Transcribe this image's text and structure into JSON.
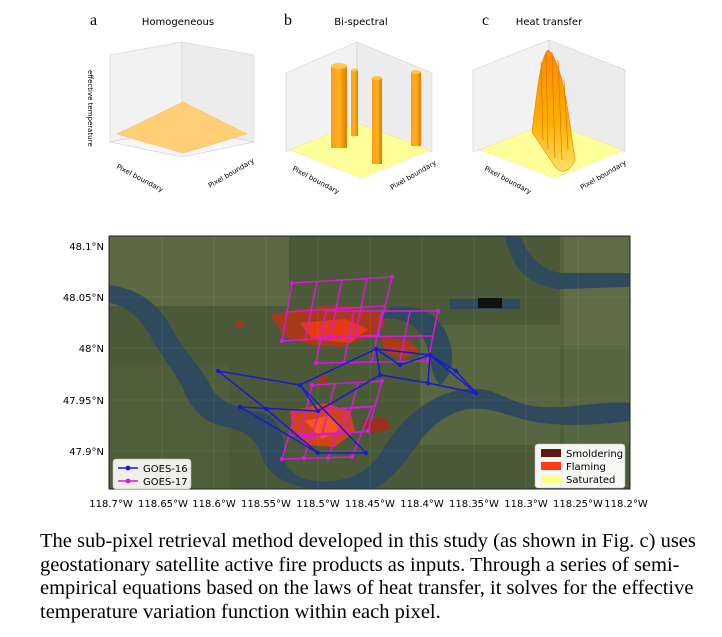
{
  "panels": [
    {
      "letter": "a",
      "title": "Homogeneous",
      "zlabel": "effective temperature",
      "xlabel": "Pixel boundary",
      "ylabel": "Pixel boundary"
    },
    {
      "letter": "b",
      "title": "Bi-spectral",
      "xlabel": "Pixel boundary",
      "ylabel": "Pixel boundary"
    },
    {
      "letter": "c",
      "title": "Heat transfer",
      "xlabel": "Pixel boundary",
      "ylabel": "Pixel boundary"
    }
  ],
  "map": {
    "y_ticks": [
      "48.1°N",
      "48.05°N",
      "48°N",
      "47.95°N",
      "47.9°N"
    ],
    "x_ticks": [
      "118.7°W",
      "118.65°W",
      "118.6°W",
      "118.55°W",
      "118.5°W",
      "118.45°W",
      "118.4°W",
      "118.35°W",
      "118.3°W",
      "118.25°W",
      "118.2°W"
    ],
    "legend_left": [
      {
        "label": "GOES-16",
        "color": "#1a1ad6"
      },
      {
        "label": "GOES-17",
        "color": "#d61ad6"
      }
    ],
    "legend_right": [
      {
        "label": "Smoldering",
        "color": "#5a1a12"
      },
      {
        "label": "Flaming",
        "color": "#ff3a10"
      },
      {
        "label": "Saturated",
        "color": "#ffff88"
      }
    ]
  },
  "caption": "The sub-pixel retrieval method developed in this study (as shown in Fig. c) uses geostationary satellite active fire products as inputs. Through a series of semi-empirical equations based on the laws of heat transfer, it solves for the effective temperature variation function within each pixel."
}
